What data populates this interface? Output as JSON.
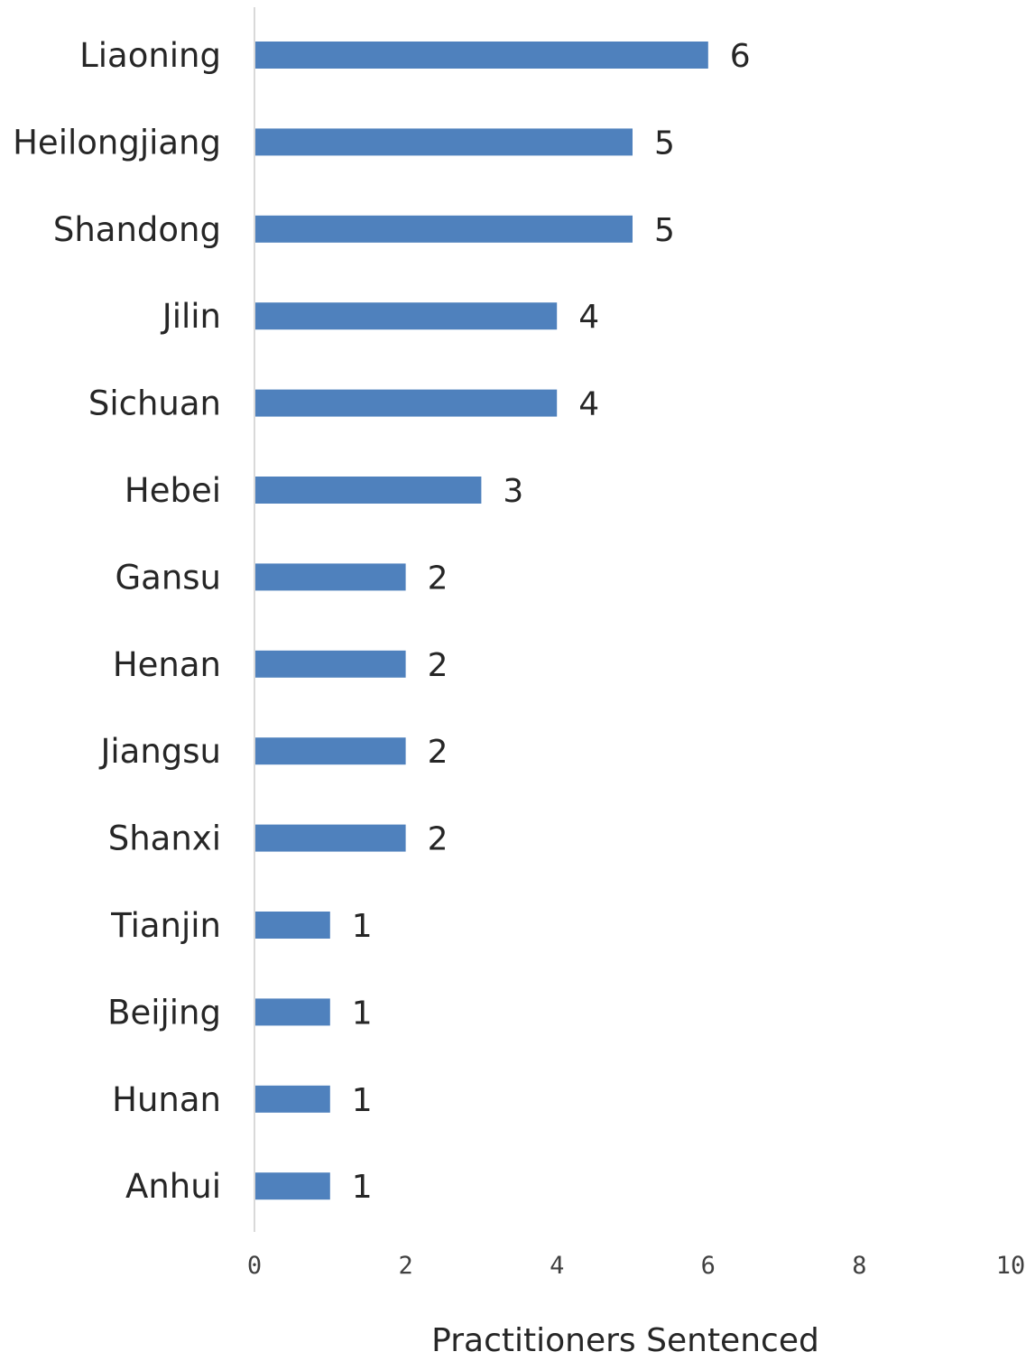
{
  "chart_data": {
    "type": "bar",
    "orientation": "horizontal",
    "categories": [
      "Liaoning",
      "Heilongjiang",
      "Shandong",
      "Jilin",
      "Sichuan",
      "Hebei",
      "Gansu",
      "Henan",
      "Jiangsu",
      "Shanxi",
      "Tianjin",
      "Beijing",
      "Hunan",
      "Anhui"
    ],
    "values": [
      6,
      5,
      5,
      4,
      4,
      3,
      2,
      2,
      2,
      2,
      1,
      1,
      1,
      1
    ],
    "data_labels": [
      "6",
      "5",
      "5",
      "4",
      "4",
      "3",
      "2",
      "2",
      "2",
      "2",
      "1",
      "1",
      "1",
      "1"
    ],
    "xlim": [
      0,
      10
    ],
    "x_ticks": [
      0,
      2,
      4,
      6,
      8,
      10
    ],
    "x_tick_labels": [
      "0",
      "2",
      "4",
      "6",
      "8",
      "10"
    ],
    "xlabel": "Practitioners Sentenced",
    "ylabel": "",
    "title": "",
    "grid": false,
    "legend": "none",
    "bar_color": "#4f81bd",
    "axis_color": "#d9d9d9"
  }
}
